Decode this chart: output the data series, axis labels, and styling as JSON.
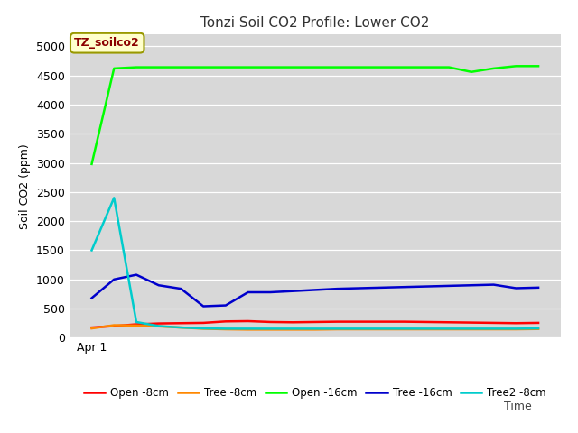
{
  "title": "Tonzi Soil CO2 Profile: Lower CO2",
  "xlabel": "Time",
  "ylabel": "Soil CO2 (ppm)",
  "annotation": "TZ_soilco2",
  "plot_bg_color": "#d8d8d8",
  "fig_bg_color": "#ffffff",
  "ylim": [
    0,
    5200
  ],
  "yticks": [
    0,
    500,
    1000,
    1500,
    2000,
    2500,
    3000,
    3500,
    4000,
    4500,
    5000
  ],
  "x_tick_label": "Apr 1",
  "series": {
    "Open -8cm": {
      "color": "#ff0000",
      "x": [
        0,
        1,
        2,
        3,
        4,
        5,
        6,
        7,
        8,
        9,
        10,
        11,
        12,
        13,
        14,
        15,
        16,
        17,
        18,
        19,
        20
      ],
      "y": [
        175,
        200,
        230,
        245,
        250,
        255,
        280,
        285,
        270,
        265,
        270,
        275,
        275,
        275,
        275,
        270,
        265,
        260,
        255,
        250,
        255
      ]
    },
    "Tree -8cm": {
      "color": "#ff8800",
      "x": [
        0,
        1,
        2,
        3,
        4,
        5,
        6,
        7,
        8,
        9,
        10,
        11,
        12,
        13,
        14,
        15,
        16,
        17,
        18,
        19,
        20
      ],
      "y": [
        160,
        215,
        210,
        195,
        175,
        155,
        145,
        140,
        140,
        140,
        140,
        145,
        145,
        145,
        145,
        145,
        145,
        145,
        145,
        145,
        150
      ]
    },
    "Open -16cm": {
      "color": "#00ff00",
      "x": [
        0,
        1,
        2,
        3,
        4,
        5,
        6,
        7,
        8,
        9,
        10,
        11,
        12,
        13,
        14,
        15,
        16,
        17,
        18,
        19,
        20
      ],
      "y": [
        2980,
        4620,
        4640,
        4640,
        4640,
        4640,
        4640,
        4640,
        4640,
        4640,
        4640,
        4640,
        4640,
        4640,
        4640,
        4640,
        4640,
        4560,
        4620,
        4660,
        4660
      ]
    },
    "Tree -16cm": {
      "color": "#0000cc",
      "x": [
        0,
        1,
        2,
        3,
        4,
        5,
        6,
        7,
        8,
        9,
        10,
        11,
        12,
        13,
        14,
        15,
        16,
        17,
        18,
        19,
        20
      ],
      "y": [
        680,
        1000,
        1080,
        900,
        840,
        540,
        555,
        780,
        780,
        800,
        820,
        840,
        850,
        860,
        870,
        880,
        890,
        900,
        910,
        850,
        860
      ]
    },
    "Tree2 -8cm": {
      "color": "#00cccc",
      "x": [
        0,
        1,
        2,
        3,
        4,
        5,
        6,
        7,
        8,
        9,
        10,
        11,
        12,
        13,
        14,
        15,
        16,
        17,
        18,
        19,
        20
      ],
      "y": [
        1500,
        2400,
        270,
        200,
        175,
        160,
        155,
        155,
        155,
        155,
        155,
        155,
        155,
        155,
        155,
        155,
        155,
        155,
        155,
        155,
        160
      ]
    }
  }
}
